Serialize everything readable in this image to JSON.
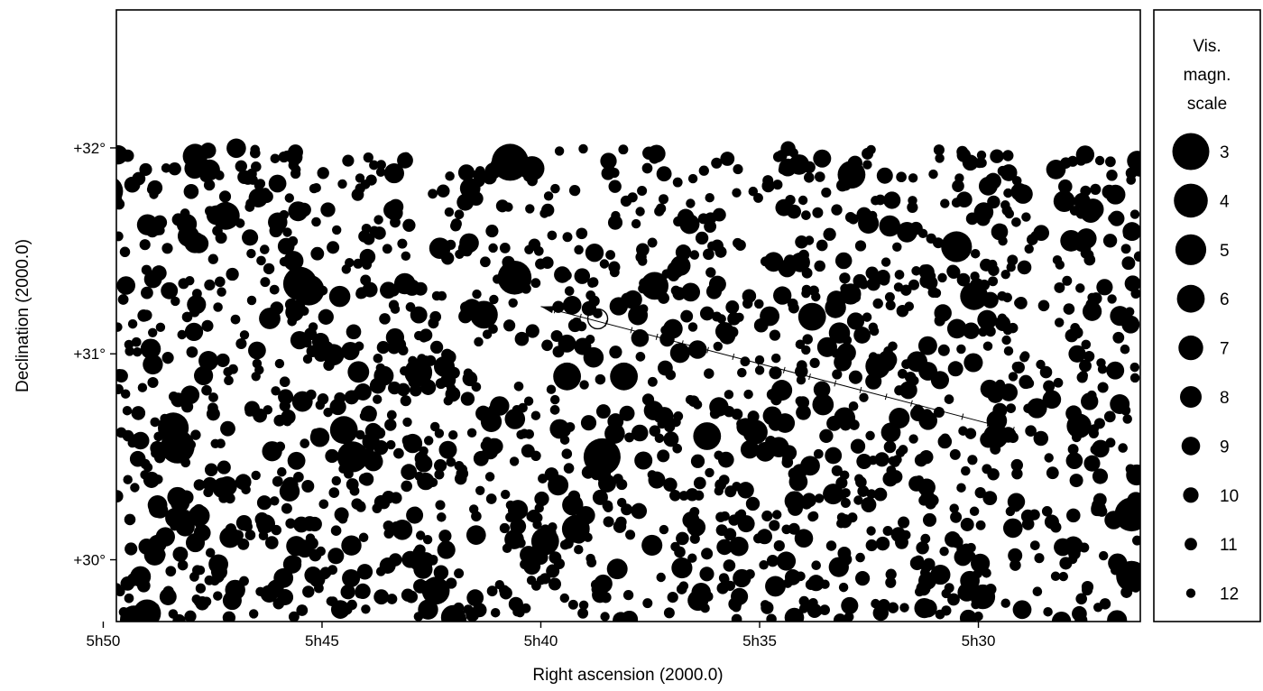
{
  "chart_data": {
    "type": "scatter",
    "subtype": "star-chart",
    "xlabel": "Right ascension (2000.0)",
    "ylabel": "Declination (2000.0)",
    "x_axis_direction": "decreasing-to-right",
    "x_ticks": [
      {
        "value": "5h50",
        "label": "5h50"
      },
      {
        "value": "5h45",
        "label": "5h45"
      },
      {
        "value": "5h40",
        "label": "5h40"
      },
      {
        "value": "5h35",
        "label": "5h35"
      },
      {
        "value": "5h30",
        "label": "5h30"
      }
    ],
    "y_ticks": [
      {
        "value": 32,
        "label": "+32°"
      },
      {
        "value": 31,
        "label": "+31°"
      },
      {
        "value": 30,
        "label": "+30°"
      }
    ],
    "xlim_ra_minutes": [
      349.7,
      326.3
    ],
    "ylim_dec_deg": [
      29.7,
      32.67
    ],
    "star_field_dec_max_deg": 32.0,
    "legend": {
      "title_lines": [
        "Vis.",
        "magn.",
        "scale"
      ],
      "placement": "right",
      "entries": [
        {
          "magnitude": 3,
          "label": "3"
        },
        {
          "magnitude": 4,
          "label": "4"
        },
        {
          "magnitude": 5,
          "label": "5"
        },
        {
          "magnitude": 6,
          "label": "6"
        },
        {
          "magnitude": 7,
          "label": "7"
        },
        {
          "magnitude": 8,
          "label": "8"
        },
        {
          "magnitude": 9,
          "label": "9"
        },
        {
          "magnitude": 10,
          "label": "10"
        },
        {
          "magnitude": 11,
          "label": "11"
        },
        {
          "magnitude": 12,
          "label": "12"
        }
      ]
    },
    "bright_stars": [
      {
        "ra_min": 349.9,
        "dec": 31.79,
        "mag": 5
      },
      {
        "ra_min": 348.4,
        "dec": 30.64,
        "mag": 5
      },
      {
        "ra_min": 348.3,
        "dec": 30.55,
        "mag": 4
      },
      {
        "ra_min": 349.3,
        "dec": 29.71,
        "mag": 6
      },
      {
        "ra_min": 349.0,
        "dec": 29.74,
        "mag": 6
      },
      {
        "ra_min": 347.2,
        "dec": 31.67,
        "mag": 6
      },
      {
        "ra_min": 345.5,
        "dec": 31.34,
        "mag": 4
      },
      {
        "ra_min": 345.3,
        "dec": 31.31,
        "mag": 5
      },
      {
        "ra_min": 344.3,
        "dec": 30.5,
        "mag": 5
      },
      {
        "ra_min": 344.5,
        "dec": 30.63,
        "mag": 6
      },
      {
        "ra_min": 342.8,
        "dec": 30.91,
        "mag": 6
      },
      {
        "ra_min": 342.4,
        "dec": 29.85,
        "mag": 6
      },
      {
        "ra_min": 340.7,
        "dec": 31.93,
        "mag": 3
      },
      {
        "ra_min": 340.6,
        "dec": 31.37,
        "mag": 4
      },
      {
        "ra_min": 341.3,
        "dec": 31.19,
        "mag": 6
      },
      {
        "ra_min": 338.6,
        "dec": 30.5,
        "mag": 3
      },
      {
        "ra_min": 339.4,
        "dec": 30.89,
        "mag": 6
      },
      {
        "ra_min": 338.1,
        "dec": 30.89,
        "mag": 6
      },
      {
        "ra_min": 339.2,
        "dec": 30.15,
        "mag": 6
      },
      {
        "ra_min": 339.9,
        "dec": 30.09,
        "mag": 6
      },
      {
        "ra_min": 336.2,
        "dec": 30.6,
        "mag": 6
      },
      {
        "ra_min": 337.4,
        "dec": 31.33,
        "mag": 6
      },
      {
        "ra_min": 332.9,
        "dec": 31.87,
        "mag": 6
      },
      {
        "ra_min": 333.8,
        "dec": 31.18,
        "mag": 6
      },
      {
        "ra_min": 330.5,
        "dec": 31.52,
        "mag": 5
      },
      {
        "ra_min": 326.5,
        "dec": 30.22,
        "mag": 4
      },
      {
        "ra_min": 326.5,
        "dec": 29.92,
        "mag": 5
      },
      {
        "ra_min": 330.1,
        "dec": 31.28,
        "mag": 6
      },
      {
        "ra_min": 329.9,
        "dec": 29.82,
        "mag": 7
      },
      {
        "ra_min": 329.6,
        "dec": 30.6,
        "mag": 7
      },
      {
        "ra_min": 327.7,
        "dec": 30.65,
        "mag": 7
      },
      {
        "ra_min": 340.2,
        "dec": 31.9,
        "mag": 7
      },
      {
        "ra_min": 347.9,
        "dec": 31.96,
        "mag": 7
      },
      {
        "ra_min": 335.1,
        "dec": 30.62,
        "mag": 7
      },
      {
        "ra_min": 332.3,
        "dec": 30.94,
        "mag": 7
      },
      {
        "ra_min": 342.0,
        "dec": 29.72,
        "mag": 7
      }
    ],
    "faint_star_count": 1700,
    "faint_star_mag_range": [
      8,
      12
    ],
    "object_track": {
      "start": {
        "ra_min": 329.2,
        "dec": 30.63
      },
      "end": {
        "ra_min": 340.0,
        "dec": 31.23
      },
      "direction": "arrow toward upper-left",
      "marked_position": {
        "ra_min": 338.7,
        "dec": 31.17,
        "marker": "open-circle"
      },
      "tick_count": 18
    }
  }
}
